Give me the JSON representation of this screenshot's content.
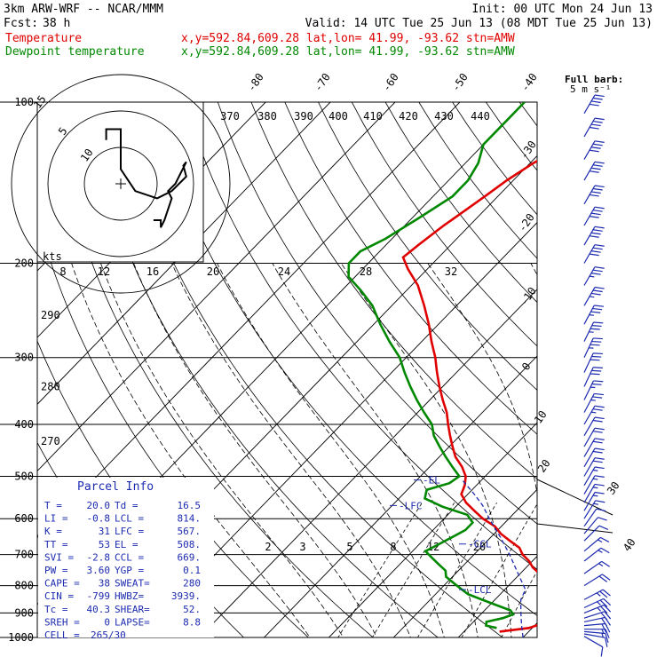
{
  "header": {
    "model": "3km ARW-WRF -- NCAR/MMM",
    "init": "Init: 00 UTC Mon 24 Jun 13",
    "fcst_label": "Fcst:",
    "fcst_value": "38 h",
    "valid": "Valid: 14 UTC Tue 25 Jun 13 (08 MDT Tue 25 Jun 13)"
  },
  "legend": {
    "temp_name": "Temperature",
    "temp_loc": "x,y=592.84,609.28  lat,lon= 41.99, -93.62  stn=AMW",
    "dew_name": "Dewpoint temperature",
    "dew_loc": "x,y=592.84,609.28  lat,lon= 41.99, -93.62  stn=AMW",
    "temp_color": "#e00000",
    "dew_color": "#008800"
  },
  "barb_label": {
    "line1": "Full barb:",
    "line2": "5 m s⁻¹"
  },
  "hodograph": {
    "kts_label": "kts",
    "ring_labels": [
      "5",
      "10",
      "15"
    ],
    "speed_ticks": [
      "8",
      "12",
      "16",
      "20",
      "24",
      "28",
      "32"
    ],
    "theta_ticks": [
      "370",
      "380",
      "390",
      "400",
      "410",
      "420",
      "430",
      "440"
    ],
    "trace_uv": [
      [
        -2,
        6
      ],
      [
        -2,
        7.5
      ],
      [
        0,
        7.5
      ],
      [
        0,
        2
      ],
      [
        2,
        -1
      ],
      [
        5,
        -2
      ],
      [
        7,
        -1
      ],
      [
        8,
        0
      ],
      [
        9,
        1
      ],
      [
        8.6,
        2.5
      ],
      [
        9,
        3
      ],
      [
        7.5,
        0
      ],
      [
        6.5,
        -1
      ],
      [
        7,
        -2
      ],
      [
        6,
        -5
      ],
      [
        5.5,
        -6
      ],
      [
        5.5,
        -5
      ],
      [
        4.5,
        -5
      ]
    ]
  },
  "parcel_info": {
    "title": "Parcel Info",
    "rows": [
      {
        "l": "T  =",
        "lv": "20.0",
        "r": "Td =",
        "rv": "16.5"
      },
      {
        "l": "LI =",
        "lv": "-0.8",
        "r": "LCL =",
        "rv": "814."
      },
      {
        "l": "K  =",
        "lv": "31",
        "r": "LFC =",
        "rv": "567."
      },
      {
        "l": "TT =",
        "lv": "53",
        "r": "EL  =",
        "rv": "508."
      },
      {
        "l": "SVI =",
        "lv": "-2.8",
        "r": "CCL =",
        "rv": "669."
      },
      {
        "l": "PW =",
        "lv": "3.60",
        "r": "YGP =",
        "rv": "0.1"
      },
      {
        "l": "CAPE =",
        "lv": "38",
        "r": "SWEAT=",
        "rv": "280"
      },
      {
        "l": "CIN =",
        "lv": "-799",
        "r": "HWBZ=",
        "rv": "3939."
      },
      {
        "l": "Tc =",
        "lv": "40.3",
        "r": "SHEAR=",
        "rv": "52."
      },
      {
        "l": "SREH =",
        "lv": "0",
        "r": "LAPSE=",
        "rv": "8.8"
      }
    ],
    "cell_label": "CELL =",
    "cell_value": "265/30"
  },
  "level_labels": {
    "el": "EL",
    "lfc": "LFC",
    "ccl": "CCL",
    "lcl": "LCL"
  },
  "chart_data": {
    "type": "line",
    "p_levels": [
      1000,
      900,
      800,
      700,
      600,
      500,
      400,
      300,
      200,
      100
    ],
    "p_tick_labels": [
      "1000",
      "900",
      "800",
      "700",
      "600",
      "500",
      "400",
      "300",
      "200",
      "100"
    ],
    "isotherm_ticks_top": [
      "-80",
      "-70",
      "-60",
      "-50",
      "-40"
    ],
    "isotherm_ticks_right": [
      "-30",
      "-20",
      "-10",
      "0",
      "10",
      "20",
      "30",
      "40"
    ],
    "theta_labels": [
      {
        "p": 340,
        "text": "280"
      },
      {
        "p": 250,
        "text": "290"
      },
      {
        "p": 430,
        "text": "270"
      }
    ],
    "mixing_labels": [
      "2",
      "3",
      "5",
      "8",
      "12",
      "20"
    ],
    "series": [
      {
        "name": "Temperature",
        "color": "#e00000",
        "points": [
          [
            975,
            15.5
          ],
          [
            960,
            19.5
          ],
          [
            940,
            21
          ],
          [
            920,
            21
          ],
          [
            900,
            20
          ],
          [
            880,
            19
          ],
          [
            860,
            18
          ],
          [
            840,
            17.5
          ],
          [
            820,
            17
          ],
          [
            800,
            16
          ],
          [
            780,
            14.5
          ],
          [
            760,
            13
          ],
          [
            740,
            11
          ],
          [
            720,
            9.5
          ],
          [
            700,
            7.5
          ],
          [
            680,
            6
          ],
          [
            660,
            3.5
          ],
          [
            640,
            1
          ],
          [
            620,
            -1
          ],
          [
            600,
            -4
          ],
          [
            580,
            -6.5
          ],
          [
            560,
            -9
          ],
          [
            540,
            -11
          ],
          [
            520,
            -11.8
          ],
          [
            500,
            -13
          ],
          [
            480,
            -15
          ],
          [
            460,
            -17.5
          ],
          [
            440,
            -19.5
          ],
          [
            420,
            -21.5
          ],
          [
            400,
            -23.5
          ],
          [
            380,
            -25.5
          ],
          [
            360,
            -28
          ],
          [
            340,
            -30.5
          ],
          [
            320,
            -33
          ],
          [
            300,
            -35.5
          ],
          [
            280,
            -38.5
          ],
          [
            260,
            -41.5
          ],
          [
            240,
            -45
          ],
          [
            220,
            -49
          ],
          [
            205,
            -53
          ],
          [
            195,
            -55.5
          ],
          [
            185,
            -55
          ],
          [
            170,
            -54
          ],
          [
            160,
            -53
          ],
          [
            150,
            -52
          ],
          [
            140,
            -51
          ],
          [
            130,
            -49.5
          ],
          [
            120,
            -47
          ],
          [
            110,
            -45
          ],
          [
            100,
            -43.5
          ]
        ]
      },
      {
        "name": "Dewpoint temperature",
        "color": "#008800",
        "points": [
          [
            960,
            14.5
          ],
          [
            950,
            12.5
          ],
          [
            935,
            12
          ],
          [
            920,
            14
          ],
          [
            905,
            15
          ],
          [
            890,
            14
          ],
          [
            870,
            11
          ],
          [
            850,
            8
          ],
          [
            830,
            5
          ],
          [
            810,
            3
          ],
          [
            790,
            1
          ],
          [
            770,
            -1
          ],
          [
            750,
            -2
          ],
          [
            730,
            -4
          ],
          [
            710,
            -6
          ],
          [
            690,
            -8
          ],
          [
            670,
            -7
          ],
          [
            650,
            -6
          ],
          [
            630,
            -5
          ],
          [
            610,
            -5
          ],
          [
            590,
            -7
          ],
          [
            570,
            -12
          ],
          [
            550,
            -16
          ],
          [
            530,
            -17
          ],
          [
            515,
            -14.5
          ],
          [
            500,
            -14
          ],
          [
            480,
            -16.5
          ],
          [
            460,
            -19
          ],
          [
            440,
            -21.5
          ],
          [
            420,
            -24
          ],
          [
            400,
            -26
          ],
          [
            380,
            -29
          ],
          [
            360,
            -32
          ],
          [
            340,
            -35
          ],
          [
            320,
            -38
          ],
          [
            300,
            -41
          ],
          [
            280,
            -45
          ],
          [
            260,
            -49
          ],
          [
            240,
            -53
          ],
          [
            225,
            -57
          ],
          [
            212,
            -61
          ],
          [
            200,
            -63
          ],
          [
            190,
            -63
          ],
          [
            180,
            -61
          ],
          [
            165,
            -59
          ],
          [
            150,
            -57
          ],
          [
            140,
            -57
          ],
          [
            130,
            -58
          ],
          [
            120,
            -60
          ],
          [
            108,
            -60
          ],
          [
            100,
            -60
          ]
        ]
      },
      {
        "name": "",
        "color": "#1d2bb0",
        "points": [
          [
            1000,
            20
          ],
          [
            950,
            18
          ],
          [
            900,
            16
          ],
          [
            850,
            14
          ],
          [
            814,
            13.2
          ],
          [
            750,
            9
          ],
          [
            700,
            5.5
          ],
          [
            650,
            1.5
          ],
          [
            600,
            -3
          ],
          [
            567,
            -6
          ],
          [
            540,
            -9
          ],
          [
            508,
            -13
          ]
        ]
      }
    ],
    "wind_barbs": [
      {
        "p": 995,
        "dir": 300,
        "spd": 12
      },
      {
        "p": 985,
        "dir": 280,
        "spd": 14
      },
      {
        "p": 975,
        "dir": 275,
        "spd": 16
      },
      {
        "p": 965,
        "dir": 270,
        "spd": 18
      },
      {
        "p": 950,
        "dir": 265,
        "spd": 20
      },
      {
        "p": 935,
        "dir": 258,
        "spd": 22
      },
      {
        "p": 920,
        "dir": 252,
        "spd": 24
      },
      {
        "p": 900,
        "dir": 248,
        "spd": 26
      },
      {
        "p": 880,
        "dir": 245,
        "spd": 26
      },
      {
        "p": 850,
        "dir": 242,
        "spd": 25
      },
      {
        "p": 800,
        "dir": 238,
        "spd": 20
      },
      {
        "p": 760,
        "dir": 235,
        "spd": 18
      },
      {
        "p": 720,
        "dir": 232,
        "spd": 16
      },
      {
        "p": 690,
        "dir": 230,
        "spd": 15
      },
      {
        "p": 660,
        "dir": 225,
        "spd": 14
      },
      {
        "p": 640,
        "dir": 220,
        "spd": 14
      },
      {
        "p": 620,
        "dir": 215,
        "spd": 14
      },
      {
        "p": 600,
        "dir": 212,
        "spd": 15
      },
      {
        "p": 580,
        "dir": 210,
        "spd": 16
      },
      {
        "p": 560,
        "dir": 210,
        "spd": 17
      },
      {
        "p": 540,
        "dir": 210,
        "spd": 18
      },
      {
        "p": 520,
        "dir": 210,
        "spd": 19
      },
      {
        "p": 500,
        "dir": 210,
        "spd": 20
      },
      {
        "p": 480,
        "dir": 210,
        "spd": 21
      },
      {
        "p": 460,
        "dir": 210,
        "spd": 22
      },
      {
        "p": 440,
        "dir": 210,
        "spd": 23
      },
      {
        "p": 420,
        "dir": 210,
        "spd": 24
      },
      {
        "p": 400,
        "dir": 210,
        "spd": 25
      },
      {
        "p": 380,
        "dir": 208,
        "spd": 27
      },
      {
        "p": 360,
        "dir": 206,
        "spd": 29
      },
      {
        "p": 340,
        "dir": 205,
        "spd": 31
      },
      {
        "p": 320,
        "dir": 205,
        "spd": 33
      },
      {
        "p": 300,
        "dir": 205,
        "spd": 35
      },
      {
        "p": 280,
        "dir": 206,
        "spd": 36
      },
      {
        "p": 260,
        "dir": 208,
        "spd": 37
      },
      {
        "p": 240,
        "dir": 210,
        "spd": 38
      },
      {
        "p": 220,
        "dir": 210,
        "spd": 39
      },
      {
        "p": 200,
        "dir": 210,
        "spd": 40
      },
      {
        "p": 185,
        "dir": 210,
        "spd": 40
      },
      {
        "p": 170,
        "dir": 210,
        "spd": 40
      },
      {
        "p": 155,
        "dir": 210,
        "spd": 40
      },
      {
        "p": 140,
        "dir": 210,
        "spd": 40
      },
      {
        "p": 128,
        "dir": 210,
        "spd": 40
      },
      {
        "p": 116,
        "dir": 210,
        "spd": 40
      },
      {
        "p": 105,
        "dir": 210,
        "spd": 40
      }
    ]
  }
}
